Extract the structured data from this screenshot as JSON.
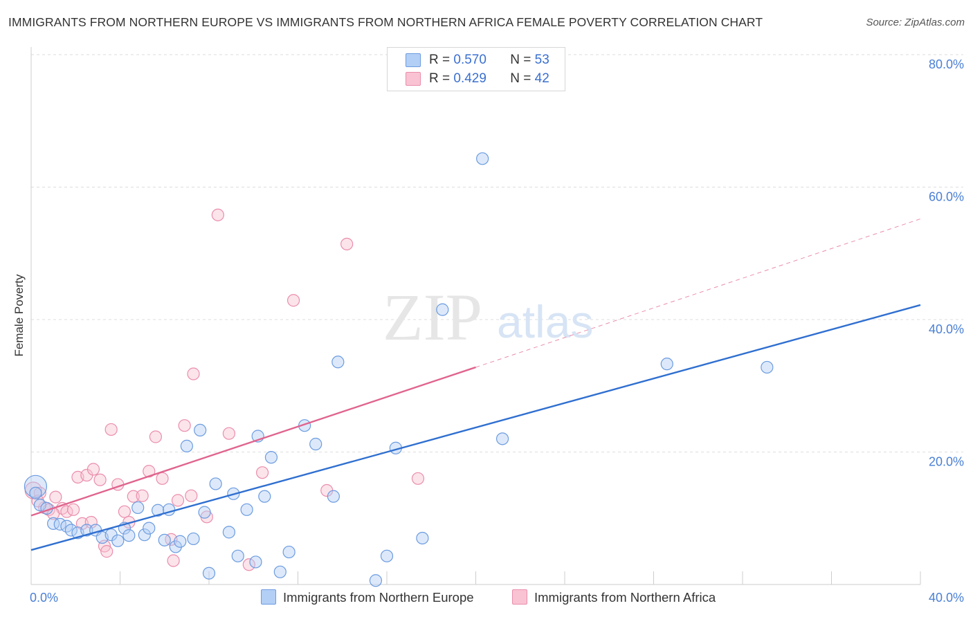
{
  "title": "IMMIGRANTS FROM NORTHERN EUROPE VS IMMIGRANTS FROM NORTHERN AFRICA FEMALE POVERTY CORRELATION CHART",
  "source": "Source: ZipAtlas.com",
  "watermark": {
    "zip": "ZIP",
    "atlas": "atlas"
  },
  "colors": {
    "blue_fill": "#b3cff5",
    "blue_stroke": "#6b9be0",
    "blue_line": "#2f6fd0",
    "pink_fill": "#f9c3d3",
    "pink_stroke": "#ea8dab",
    "pink_line": "#e0648e",
    "tick_text": "#4a7fd4",
    "grid": "#dddddd"
  },
  "legend": {
    "series1": {
      "r_label": "R =",
      "r_value": "0.570",
      "n_label": "N =",
      "n_value": "53"
    },
    "series2": {
      "r_label": "R =",
      "r_value": "0.429",
      "n_label": "N =",
      "n_value": "42"
    }
  },
  "chart_data": {
    "type": "scatter",
    "title": "IMMIGRANTS FROM NORTHERN EUROPE VS IMMIGRANTS FROM NORTHERN AFRICA FEMALE POVERTY CORRELATION CHART",
    "xlabel": "",
    "ylabel": "Female Poverty",
    "xlim": [
      0,
      40
    ],
    "ylim": [
      0,
      80
    ],
    "x_tick_labels": [
      {
        "value": 0,
        "label": "0.0%"
      },
      {
        "value": 40,
        "label": "40.0%"
      }
    ],
    "y_tick_labels": [
      {
        "value": 20,
        "label": "20.0%"
      },
      {
        "value": 40,
        "label": "40.0%"
      },
      {
        "value": 60,
        "label": "60.0%"
      },
      {
        "value": 80,
        "label": "80.0%"
      }
    ],
    "series": [
      {
        "name": "Immigrants from Northern Europe",
        "color": "#b3cff5",
        "R": 0.57,
        "N": 53,
        "trend": {
          "x0": 0,
          "y0": 5.2,
          "x1": 40,
          "y1": 42.2
        },
        "points": [
          [
            0.2,
            14.8
          ],
          [
            0.4,
            12.0
          ],
          [
            0.7,
            11.5
          ],
          [
            1.0,
            9.2
          ],
          [
            1.3,
            9.1
          ],
          [
            1.6,
            8.8
          ],
          [
            1.8,
            8.2
          ],
          [
            2.1,
            7.8
          ],
          [
            2.5,
            8.2
          ],
          [
            2.9,
            8.2
          ],
          [
            3.2,
            7.1
          ],
          [
            3.6,
            7.5
          ],
          [
            3.9,
            6.6
          ],
          [
            4.2,
            8.5
          ],
          [
            4.4,
            7.4
          ],
          [
            4.8,
            11.6
          ],
          [
            5.1,
            7.5
          ],
          [
            5.3,
            8.5
          ],
          [
            5.7,
            11.2
          ],
          [
            6.0,
            6.7
          ],
          [
            6.2,
            11.3
          ],
          [
            6.5,
            5.7
          ],
          [
            6.7,
            6.5
          ],
          [
            7.0,
            20.9
          ],
          [
            7.3,
            6.9
          ],
          [
            7.6,
            23.3
          ],
          [
            7.8,
            10.9
          ],
          [
            8.0,
            1.7
          ],
          [
            8.3,
            15.2
          ],
          [
            8.9,
            7.9
          ],
          [
            9.1,
            13.7
          ],
          [
            9.3,
            4.3
          ],
          [
            9.7,
            11.3
          ],
          [
            10.1,
            3.4
          ],
          [
            10.2,
            22.4
          ],
          [
            10.5,
            13.3
          ],
          [
            10.8,
            19.2
          ],
          [
            11.2,
            1.9
          ],
          [
            11.6,
            4.9
          ],
          [
            12.3,
            24.0
          ],
          [
            12.8,
            21.2
          ],
          [
            13.6,
            13.3
          ],
          [
            13.8,
            33.6
          ],
          [
            15.5,
            0.6
          ],
          [
            16.0,
            4.3
          ],
          [
            16.4,
            20.6
          ],
          [
            17.6,
            7.0
          ],
          [
            18.5,
            41.5
          ],
          [
            20.3,
            64.3
          ],
          [
            21.2,
            22.0
          ],
          [
            28.6,
            33.3
          ],
          [
            33.1,
            32.8
          ],
          [
            0.2,
            13.8
          ]
        ]
      },
      {
        "name": "Immigrants from Northern Africa",
        "color": "#f9c3d3",
        "R": 0.429,
        "N": 42,
        "trend": {
          "x0": 0,
          "y0": 10.4,
          "x1": 20,
          "y1": 32.8
        },
        "trend_dashed": {
          "x0": 20,
          "y0": 32.8,
          "x1": 40,
          "y1": 55.2
        },
        "points": [
          [
            0.1,
            14.2
          ],
          [
            0.4,
            13.8
          ],
          [
            0.6,
            11.6
          ],
          [
            0.8,
            11.3
          ],
          [
            1.1,
            13.2
          ],
          [
            1.4,
            11.5
          ],
          [
            1.6,
            11.0
          ],
          [
            1.9,
            11.3
          ],
          [
            2.1,
            16.2
          ],
          [
            2.3,
            9.2
          ],
          [
            2.5,
            16.5
          ],
          [
            2.7,
            9.4
          ],
          [
            2.8,
            17.4
          ],
          [
            3.1,
            15.8
          ],
          [
            3.3,
            5.8
          ],
          [
            3.4,
            5.0
          ],
          [
            3.6,
            23.4
          ],
          [
            3.9,
            15.1
          ],
          [
            4.2,
            11.0
          ],
          [
            4.4,
            9.4
          ],
          [
            4.6,
            13.3
          ],
          [
            5.0,
            13.4
          ],
          [
            5.3,
            17.1
          ],
          [
            5.6,
            22.3
          ],
          [
            5.9,
            16.0
          ],
          [
            6.3,
            6.8
          ],
          [
            6.4,
            3.6
          ],
          [
            6.6,
            12.7
          ],
          [
            6.9,
            24.0
          ],
          [
            7.2,
            13.4
          ],
          [
            7.3,
            31.8
          ],
          [
            7.9,
            10.2
          ],
          [
            8.4,
            55.8
          ],
          [
            8.9,
            22.8
          ],
          [
            9.8,
            3.0
          ],
          [
            10.4,
            16.9
          ],
          [
            11.8,
            42.9
          ],
          [
            13.3,
            14.2
          ],
          [
            14.2,
            51.4
          ],
          [
            17.4,
            16.0
          ],
          [
            0.3,
            12.6
          ],
          [
            1.0,
            10.7
          ]
        ]
      }
    ],
    "grid": true,
    "legend_position": "top-center",
    "bottom_legend": [
      "Immigrants from Northern Europe",
      "Immigrants from Northern Africa"
    ]
  }
}
